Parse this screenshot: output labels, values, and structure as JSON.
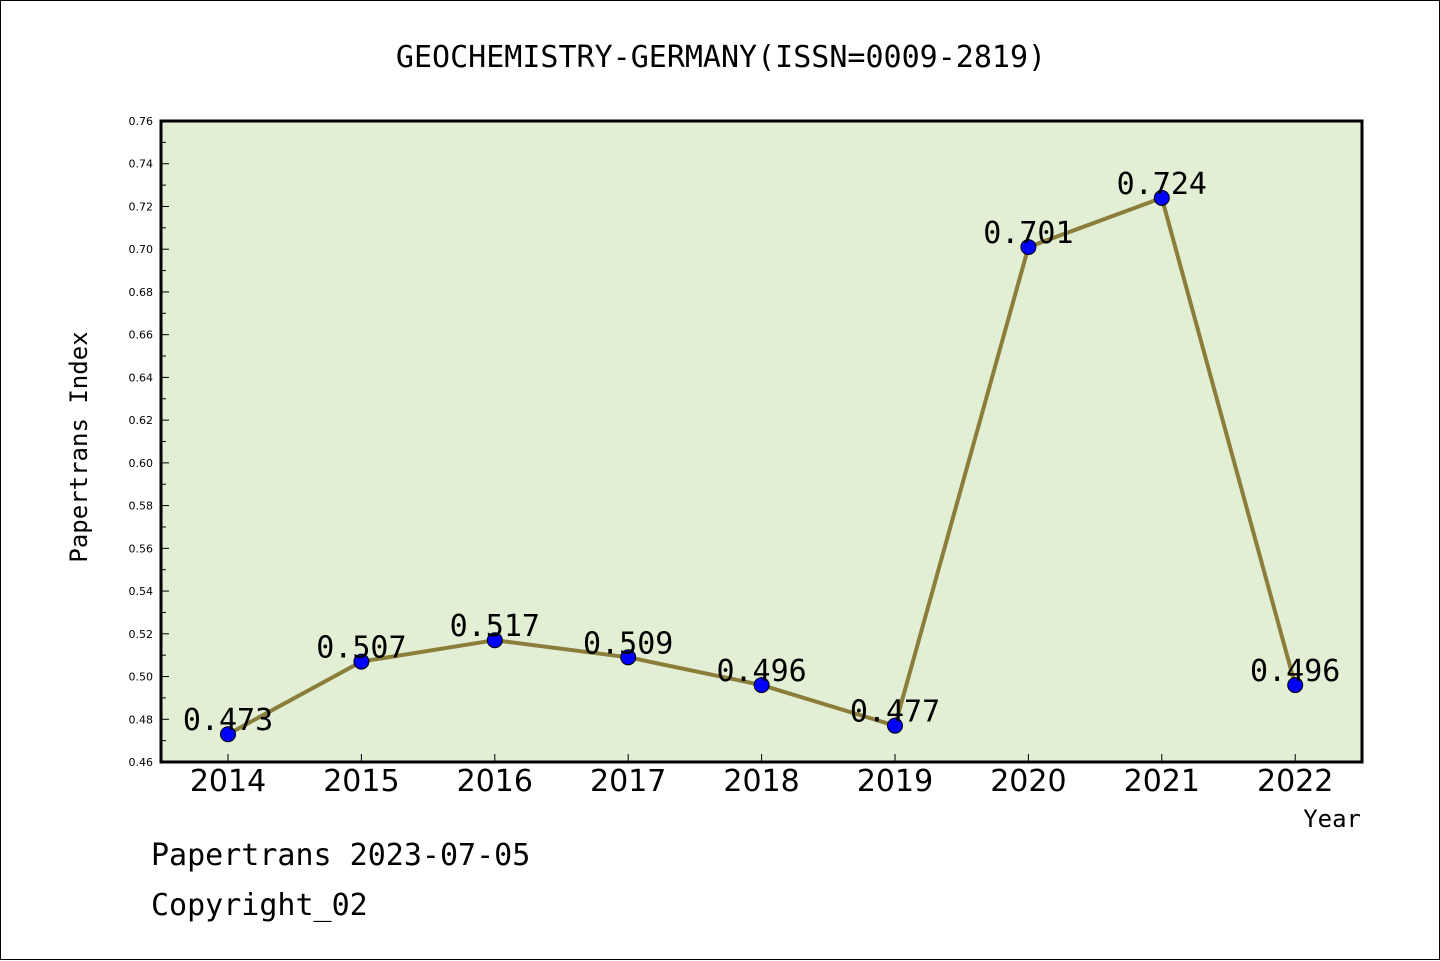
{
  "chart_data": {
    "type": "line",
    "title": "GEOCHEMISTRY-GERMANY(ISSN=0009-2819)",
    "xlabel": "Year",
    "ylabel": "Papertrans Index",
    "categories": [
      "2014",
      "2015",
      "2016",
      "2017",
      "2018",
      "2019",
      "2020",
      "2021",
      "2022"
    ],
    "series": [
      {
        "values": [
          0.473,
          0.507,
          0.517,
          0.509,
          0.496,
          0.477,
          0.701,
          0.724,
          0.496
        ],
        "labels": [
          "0.473",
          "0.507",
          "0.517",
          "0.509",
          "0.496",
          "0.477",
          "0.701",
          "0.724",
          "0.496"
        ]
      }
    ],
    "ylim": [
      0.46,
      0.76
    ],
    "yticks": [
      "0.46",
      "0.48",
      "0.50",
      "0.52",
      "0.54",
      "0.56",
      "0.58",
      "0.60",
      "0.62",
      "0.64",
      "0.66",
      "0.68",
      "0.70",
      "0.72",
      "0.74",
      "0.76"
    ],
    "grid": false,
    "legend": "none",
    "colors": {
      "plot_background": "#e2efd5",
      "line": "#8b7d3a",
      "marker": "#0000ff",
      "frame": "#000000"
    }
  },
  "footer": {
    "line1": "Papertrans 2023-07-05",
    "line2": "Copyright_02"
  }
}
